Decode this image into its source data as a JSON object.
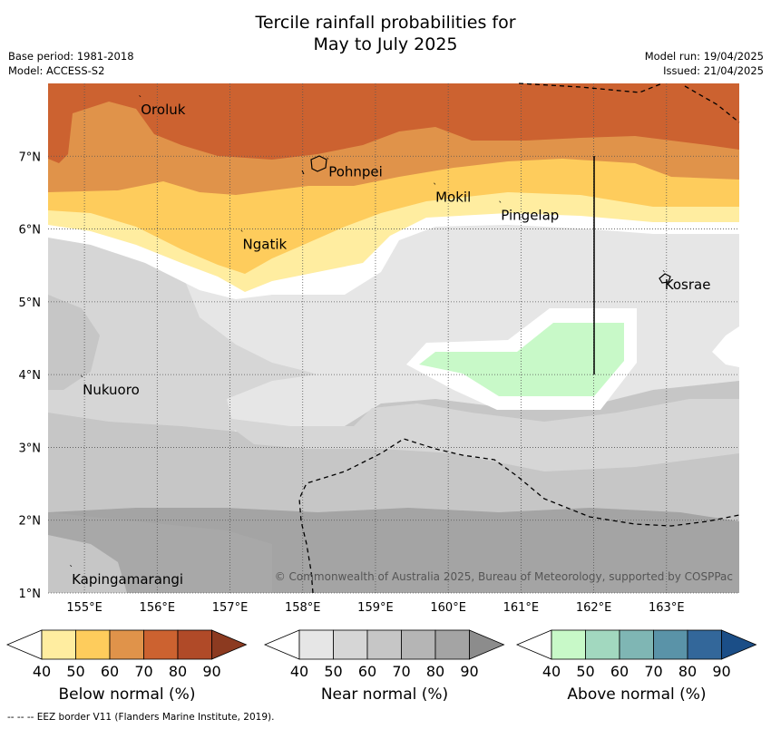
{
  "title": {
    "line1": "Tercile rainfall probabilities for",
    "line2": "May to July 2025"
  },
  "info": {
    "base_period": "Base period: 1981-2018",
    "model": "Model: ACCESS-S2",
    "model_run": "Model run: 19/04/2025",
    "issued": "Issued: 21/04/2025"
  },
  "copyright": "© Commonwealth of Australia 2025, Bureau of Meteorology, supported by COSPPac",
  "axes": {
    "lon_labels": [
      "155°E",
      "156°E",
      "157°E",
      "158°E",
      "159°E",
      "160°E",
      "161°E",
      "162°E",
      "163°E"
    ],
    "lat_labels": [
      "1°N",
      "2°N",
      "3°N",
      "4°N",
      "5°N",
      "6°N",
      "7°N"
    ],
    "lon_values": [
      155,
      156,
      157,
      158,
      159,
      160,
      161,
      162,
      163
    ],
    "lat_values": [
      1,
      2,
      3,
      4,
      5,
      6,
      7
    ],
    "lon_range": [
      154.5,
      164
    ],
    "lat_range": [
      1,
      8
    ]
  },
  "places": [
    {
      "name": "Oroluk",
      "lon": 155.75,
      "lat": 7.7
    },
    {
      "name": "Pohnpei",
      "lon": 158.33,
      "lat": 6.85
    },
    {
      "name": "Mokil",
      "lon": 159.8,
      "lat": 6.5
    },
    {
      "name": "Pingelap",
      "lon": 160.7,
      "lat": 6.25
    },
    {
      "name": "Ngatik",
      "lon": 157.15,
      "lat": 5.85
    },
    {
      "name": "Kosrae",
      "lon": 162.95,
      "lat": 5.3
    },
    {
      "name": "Nukuoro",
      "lon": 154.95,
      "lat": 3.85
    },
    {
      "name": "Kapingamarangi",
      "lon": 154.8,
      "lat": 1.25
    }
  ],
  "colorbars": [
    {
      "label": "Below normal (%)",
      "ticks": [
        "40",
        "50",
        "60",
        "70",
        "80",
        "90"
      ],
      "colors": [
        "#ffffff",
        "#ffeda0",
        "#fecc5c",
        "#e0934a",
        "#cc6230",
        "#b04a28",
        "#8c3a20"
      ]
    },
    {
      "label": "Near normal (%)",
      "ticks": [
        "40",
        "50",
        "60",
        "70",
        "80",
        "90"
      ],
      "colors": [
        "#ffffff",
        "#e6e6e6",
        "#d6d6d6",
        "#c6c6c6",
        "#b5b5b5",
        "#a4a4a4",
        "#8c8c8c"
      ]
    },
    {
      "label": "Above normal (%)",
      "ticks": [
        "40",
        "50",
        "60",
        "70",
        "80",
        "90"
      ],
      "colors": [
        "#ffffff",
        "#c8f9c8",
        "#a2d8bf",
        "#7fb6b4",
        "#5a93a8",
        "#33679a",
        "#1b4e87"
      ]
    }
  ],
  "footer": "--  --  -- EEZ border V11 (Flanders Marine Institute, 2019)."
}
